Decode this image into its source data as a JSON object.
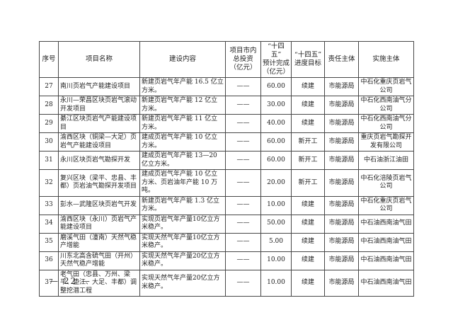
{
  "page": {
    "number_label": "— 22 —"
  },
  "table": {
    "headers": [
      "序号",
      "项目名称",
      "建设内容",
      "项目市内\n总投资\n（亿元）",
      "“十四五”\n预计完成\n（亿元）",
      "“十四五”\n进度目标",
      "责任主体",
      "实施主体"
    ],
    "rows": [
      {
        "no": "27",
        "name": "南川页岩气产能建设项目",
        "content": "新建页岩气年产能 16.5 亿立方米。",
        "investment": "——",
        "completion": "60.00",
        "target": "续建",
        "responsible": "市能源局",
        "implementer": "中石化重庆页岩气公司"
      },
      {
        "no": "28",
        "name": "永川—荣昌区块页岩气滚动开发项目",
        "content": "新建页岩气年产能 12 亿立方米。",
        "investment": "——",
        "completion": "30.00",
        "target": "续建",
        "responsible": "市能源局",
        "implementer": "中石化西南油气分公司"
      },
      {
        "no": "29",
        "name": "綦江区块页岩气产能建设项目",
        "content": "新建页岩气年产能 11 亿立方米。",
        "investment": "——",
        "completion": "40.00",
        "target": "续建",
        "responsible": "市能源局",
        "implementer": "中石化西南油气分公司"
      },
      {
        "no": "30",
        "name": "渝西区块（铜梁—大足）页岩气产能建设项目",
        "content": "建成页岩气年产能 10 亿立方米。",
        "investment": "——",
        "completion": "60.00",
        "target": "新开工",
        "responsible": "市能源局",
        "implementer": "重庆页岩气勘探开发有限公司"
      },
      {
        "no": "31",
        "name": "永川区块页岩气勘探开发",
        "content": "建成页岩气年产能 13—20 亿立方米。",
        "investment": "——",
        "completion": "60.00",
        "target": "新开工",
        "responsible": "市能源局",
        "implementer": "中石油浙江油田"
      },
      {
        "no": "32",
        "name": "复兴区块（梁平、忠县、丰都）页岩油气勘探开发项目",
        "content": "建成页岩气年产能 10 亿立方米、页岩油年产能 10 万吨。",
        "investment": "——",
        "completion": "20.00",
        "target": "新开工",
        "responsible": "市能源局",
        "implementer": "中石化涪陵页岩气公司"
      },
      {
        "no": "33",
        "name": "彭水—武隆区块页岩气开发",
        "content": "新建页岩气年产能 1.3 亿立方米。",
        "investment": "——",
        "completion": "10.00",
        "target": "续建",
        "responsible": "市能源局",
        "implementer": "中石化重庆页岩气公司"
      },
      {
        "no": "34",
        "name": "渝西区块（永川）页岩气产能建设项目",
        "content": "实现页岩气年产量10亿立方米稳产。",
        "investment": "——",
        "completion": "50.00",
        "target": "续建",
        "responsible": "市能源局",
        "implementer": "中石油西南油气田"
      },
      {
        "no": "35",
        "name": "磨溪气田（潼南）天然气稳产增能",
        "content": "实现天然气年产量10亿立方米稳产。",
        "investment": "——",
        "completion": "5.00",
        "target": "续建",
        "responsible": "市能源局",
        "implementer": "中石油西南油气田"
      },
      {
        "no": "36",
        "name": "川东北高含硫气田（开州）天然气稳产增能",
        "content": "实现天然气年产量20亿立方米稳产。",
        "investment": "——",
        "completion": "10.00",
        "target": "续建",
        "responsible": "市能源局",
        "implementer": "中石油西南油气田"
      },
      {
        "no": "37",
        "name": "老气田（忠县、万州、梁平、垫江、大足、丰都）调整挖潜工程",
        "content": "实现天然气年产量20亿立方米稳产。",
        "investment": "——",
        "completion": "10.00",
        "target": "续建",
        "responsible": "市能源局",
        "implementer": "中石油西南油气田"
      }
    ]
  }
}
